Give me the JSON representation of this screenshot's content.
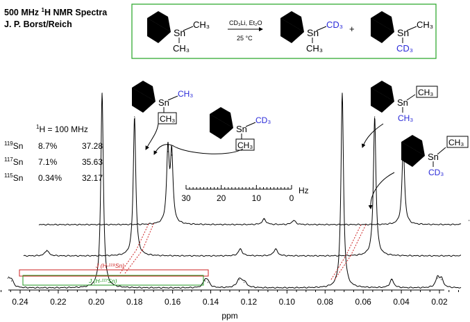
{
  "header": {
    "title_line1_prefix": "500 MHz ",
    "title_line1_sup": "1",
    "title_line1_suffix": "H NMR Spectra",
    "title_line2": "J. P. Borst/Reich"
  },
  "reaction": {
    "reagent": "CD₃Li, Et₂O",
    "conditions": "25 °C",
    "plus": "+",
    "sn": "Sn",
    "ch3": "CH₃",
    "cd3": "CD₃"
  },
  "info": {
    "freq_sup": "1",
    "freq_rest": "H = 100 MHz",
    "rows": [
      {
        "sup": "119",
        "el": "Sn",
        "abund": "8.7%",
        "j": "37.28"
      },
      {
        "sup": "117",
        "el": "Sn",
        "abund": "7.1%",
        "j": "35.63"
      },
      {
        "sup": "115",
        "el": "Sn",
        "abund": "0.34%",
        "j": "32.17"
      }
    ]
  },
  "scale": {
    "ticks": [
      "30",
      "20",
      "10",
      "0"
    ],
    "unit": "Hz"
  },
  "annotations": {
    "j119": "J (H-¹¹⁹Sn)",
    "j117": "J (H-¹¹⁷Sn)"
  },
  "colors": {
    "red": "#cc2222",
    "green": "#229922",
    "blue": "#2a2ad8",
    "box_border": "#33aa33"
  },
  "chart_data": {
    "type": "line",
    "title": "500 MHz 1H NMR Spectra",
    "xlabel": "ppm",
    "ylabel": "",
    "xlim": [
      0.255,
      0.005
    ],
    "xticks": [
      0.24,
      0.22,
      0.2,
      0.18,
      0.16,
      0.14,
      0.12,
      0.1,
      0.08,
      0.06,
      0.04,
      0.02
    ],
    "series": [
      {
        "peaks": [
          {
            "x": 0.197,
            "height": 280,
            "width": 0.0008
          },
          {
            "x": 0.071,
            "height": 280,
            "width": 0.0008
          },
          {
            "x": 0.2465,
            "height": 14,
            "width": 0.0012
          },
          {
            "x": 0.2445,
            "height": 10,
            "width": 0.0012
          },
          {
            "x": 0.143,
            "height": 10,
            "width": 0.0012
          },
          {
            "x": 0.1415,
            "height": 8,
            "width": 0.0012
          },
          {
            "x": 0.125,
            "height": 12,
            "width": 0.0015
          },
          {
            "x": 0.1225,
            "height": 8,
            "width": 0.0015
          },
          {
            "x": 0.045,
            "height": 12,
            "width": 0.0012
          },
          {
            "x": 0.021,
            "height": 14,
            "width": 0.0012
          },
          {
            "x": 0.019,
            "height": 12,
            "width": 0.0012
          }
        ]
      },
      {
        "peaks": [
          {
            "x": 0.188,
            "height": 200,
            "width": 0.0008
          },
          {
            "x": 0.062,
            "height": 200,
            "width": 0.0008
          },
          {
            "x": 0.234,
            "height": 8,
            "width": 0.0012
          },
          {
            "x": 0.1325,
            "height": 10,
            "width": 0.0012
          },
          {
            "x": 0.114,
            "height": 10,
            "width": 0.0012
          },
          {
            "x": 0.0105,
            "height": 10,
            "width": 0.0012
          }
        ]
      },
      {
        "peaks": [
          {
            "x": 0.1785,
            "height": 105,
            "width": 0.0008
          },
          {
            "x": 0.1765,
            "height": 100,
            "width": 0.0008
          },
          {
            "x": 0.055,
            "height": 115,
            "width": 0.0008
          },
          {
            "x": 0.128,
            "height": 8,
            "width": 0.0012
          },
          {
            "x": 0.1125,
            "height": 6,
            "width": 0.0012
          },
          {
            "x": 0.0205,
            "height": 6,
            "width": 0.0012
          }
        ]
      }
    ]
  }
}
